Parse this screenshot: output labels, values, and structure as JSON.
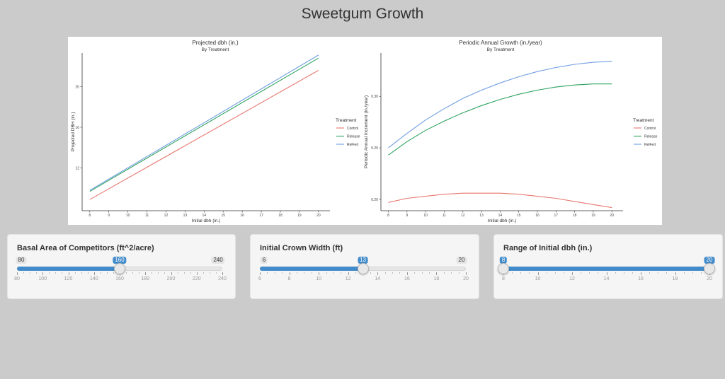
{
  "app": {
    "title": "Sweetgum Growth"
  },
  "colors": {
    "control": "#e8776f",
    "release": "#2ca25f",
    "relfert": "#6f9de1",
    "accent": "#428bca"
  },
  "chart_data": [
    {
      "type": "line",
      "title": "Projected dbh (in.)",
      "subtitle": "By Treatment",
      "xlabel": "Initial dbh (in.)",
      "ylabel": "Projected DBH (in.)",
      "xlim": [
        7.6,
        20.6
      ],
      "ylim": [
        7.8,
        23.3
      ],
      "xticks": [
        8,
        9,
        10,
        11,
        12,
        13,
        14,
        15,
        16,
        17,
        18,
        19,
        20
      ],
      "yticks": [
        12,
        16,
        20
      ],
      "legend": {
        "title": "Treatment",
        "position": "right"
      },
      "series": [
        {
          "name": "Control",
          "color": "#e8776f",
          "x": [
            8,
            20
          ],
          "y": [
            8.9,
            21.6
          ]
        },
        {
          "name": "Release",
          "color": "#2ca25f",
          "x": [
            8,
            20
          ],
          "y": [
            9.7,
            22.8
          ]
        },
        {
          "name": "RelFert",
          "color": "#6f9de1",
          "x": [
            8,
            20
          ],
          "y": [
            9.8,
            23.1
          ]
        }
      ]
    },
    {
      "type": "line",
      "title": "Periodic Annual Growth (in./year)",
      "subtitle": "By Treatment",
      "xlabel": "Initial dbh (in.)",
      "ylabel": "Periodic Annual Increment (in./year)",
      "xlim": [
        7.6,
        20.6
      ],
      "ylim": [
        0.189,
        0.342
      ],
      "xticks": [
        8,
        9,
        10,
        11,
        12,
        13,
        14,
        15,
        16,
        17,
        18,
        19,
        20
      ],
      "yticks": [
        0.2,
        0.25,
        0.3
      ],
      "ytick_labels": [
        "0.20",
        "0.25",
        "0.30"
      ],
      "legend": {
        "title": "Treatment",
        "position": "right"
      },
      "series": [
        {
          "name": "Control",
          "color": "#e8776f",
          "x": [
            8,
            9,
            10,
            11,
            12,
            13,
            14,
            15,
            16,
            17,
            18,
            19,
            20
          ],
          "y": [
            0.197,
            0.201,
            0.203,
            0.205,
            0.206,
            0.206,
            0.206,
            0.205,
            0.203,
            0.201,
            0.198,
            0.195,
            0.192
          ]
        },
        {
          "name": "Release",
          "color": "#2ca25f",
          "x": [
            8,
            9,
            10,
            11,
            12,
            13,
            14,
            15,
            16,
            17,
            18,
            19,
            20
          ],
          "y": [
            0.243,
            0.256,
            0.267,
            0.276,
            0.284,
            0.291,
            0.297,
            0.302,
            0.306,
            0.309,
            0.311,
            0.312,
            0.312
          ]
        },
        {
          "name": "RelFert",
          "color": "#6f9de1",
          "x": [
            8,
            9,
            10,
            11,
            12,
            13,
            14,
            15,
            16,
            17,
            18,
            19,
            20
          ],
          "y": [
            0.25,
            0.264,
            0.277,
            0.288,
            0.298,
            0.306,
            0.313,
            0.319,
            0.324,
            0.328,
            0.331,
            0.333,
            0.334
          ]
        }
      ]
    }
  ],
  "sliders": [
    {
      "label": "Basal Area of Competitors (ft^2/acre)",
      "min": 80,
      "max": 240,
      "values": [
        160
      ],
      "min_label": "80",
      "max_label": "240",
      "value_labels": [
        "160"
      ],
      "ticks": [
        "80",
        "100",
        "120",
        "140",
        "160",
        "180",
        "200",
        "220",
        "240"
      ]
    },
    {
      "label": "Initial Crown Width (ft)",
      "min": 6,
      "max": 20,
      "values": [
        13
      ],
      "min_label": "6",
      "max_label": "20",
      "value_labels": [
        "13"
      ],
      "ticks": [
        "6",
        "8",
        "10",
        "12",
        "14",
        "16",
        "18",
        "20"
      ]
    },
    {
      "label": "Range of Initial dbh (in.)",
      "min": 8,
      "max": 20,
      "values": [
        8,
        20
      ],
      "min_label": "",
      "max_label": "",
      "value_labels": [
        "8",
        "20"
      ],
      "ticks": [
        "8",
        "10",
        "12",
        "14",
        "16",
        "18",
        "20"
      ]
    }
  ]
}
